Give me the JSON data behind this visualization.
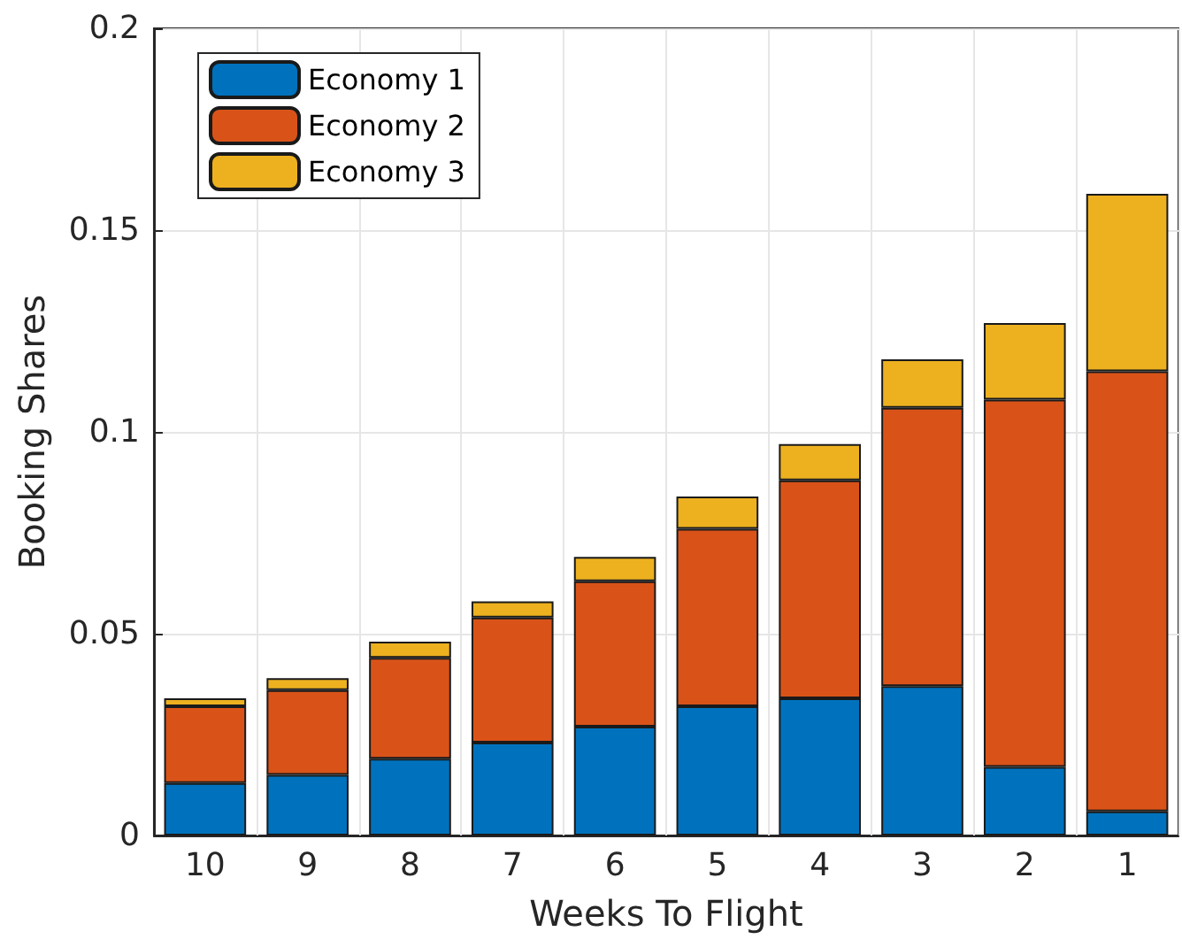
{
  "chart_data": {
    "type": "bar",
    "stacked": true,
    "xlabel": "Weeks To Flight",
    "ylabel": "Booking Shares",
    "categories": [
      "10",
      "9",
      "8",
      "7",
      "6",
      "5",
      "4",
      "3",
      "2",
      "1"
    ],
    "series": [
      {
        "name": "Economy 1",
        "color": "#0072bd",
        "values": [
          0.013,
          0.015,
          0.019,
          0.023,
          0.027,
          0.032,
          0.034,
          0.037,
          0.017,
          0.006
        ]
      },
      {
        "name": "Economy 2",
        "color": "#d95319",
        "values": [
          0.019,
          0.021,
          0.025,
          0.031,
          0.036,
          0.044,
          0.054,
          0.069,
          0.091,
          0.109
        ]
      },
      {
        "name": "Economy 3",
        "color": "#edb120",
        "values": [
          0.002,
          0.003,
          0.004,
          0.004,
          0.006,
          0.008,
          0.009,
          0.012,
          0.019,
          0.044
        ]
      }
    ],
    "ylim": [
      0,
      0.2
    ],
    "yticks": [
      0,
      0.05,
      0.1,
      0.15,
      0.2
    ],
    "grid": true,
    "legend": "top left"
  }
}
